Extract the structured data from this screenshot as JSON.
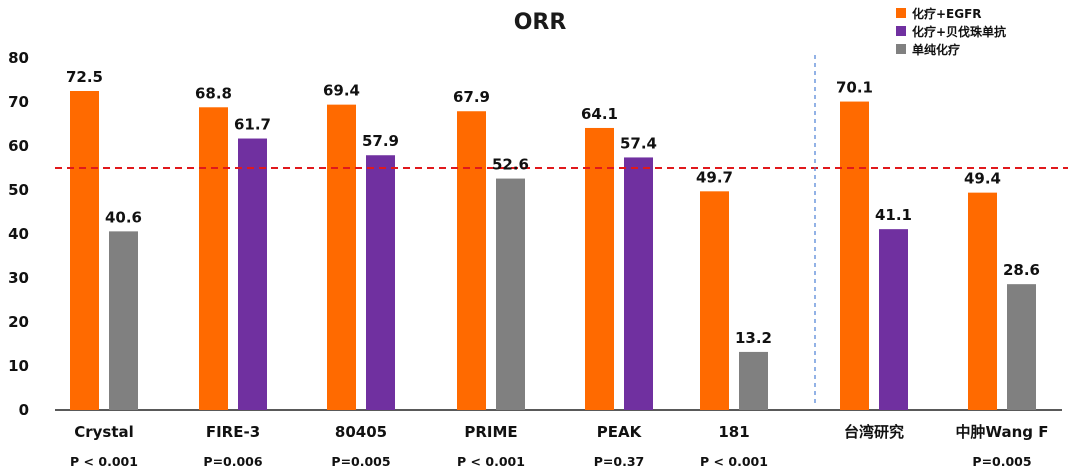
{
  "chart_data": {
    "type": "bar",
    "title": "ORR",
    "ylim": [
      0,
      80
    ],
    "yticks": [
      0,
      10,
      20,
      30,
      40,
      50,
      60,
      70,
      80
    ],
    "reference_line": 55,
    "categories": [
      "Crystal",
      "FIRE-3",
      "80405",
      "PRIME",
      "PEAK",
      "181",
      "台湾研究",
      "中肿Wang F"
    ],
    "p_values": [
      "P < 0.001",
      "P=0.006",
      "P=0.005",
      "P  < 0.001",
      "P=0.37",
      "P  < 0.001",
      "",
      "P=0.005"
    ],
    "series": [
      {
        "name": "化疗+EGFR",
        "color": "#ff6a00",
        "values": [
          72.5,
          68.8,
          69.4,
          67.9,
          64.1,
          49.7,
          70.1,
          49.4
        ]
      },
      {
        "name": "化疗+贝伐珠单抗",
        "color": "#7030a0",
        "values": [
          null,
          61.7,
          57.9,
          null,
          57.4,
          null,
          41.1,
          null
        ]
      },
      {
        "name": "单纯化疗",
        "color": "#808080",
        "values": [
          40.6,
          null,
          null,
          52.6,
          null,
          13.2,
          null,
          28.6
        ]
      }
    ],
    "legend_position": "top-right"
  }
}
